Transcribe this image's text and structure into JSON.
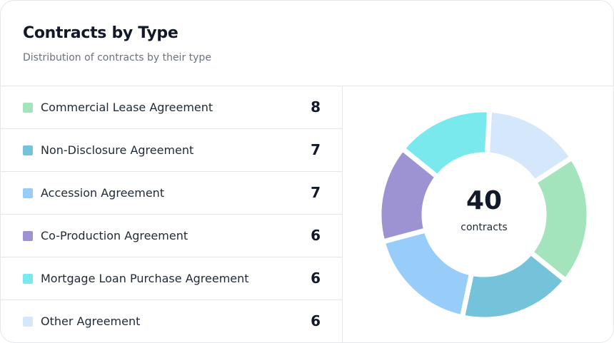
{
  "header": {
    "title": "Contracts by Type",
    "subtitle": "Distribution of contracts by their type"
  },
  "items": [
    {
      "label": "Commercial Lease Agreement",
      "value": 8,
      "color": "#a3e4bc"
    },
    {
      "label": "Non-Disclosure Agreement",
      "value": 7,
      "color": "#74c3db"
    },
    {
      "label": "Accession Agreement",
      "value": 7,
      "color": "#98cdfa"
    },
    {
      "label": "Co-Production Agreement",
      "value": 6,
      "color": "#9d93d3"
    },
    {
      "label": "Mortgage Loan Purchase Agreement",
      "value": 6,
      "color": "#7ae9ee"
    },
    {
      "label": "Other Agreement",
      "value": 6,
      "color": "#d5e8fb"
    }
  ],
  "total": {
    "value": 40,
    "label": "contracts"
  }
}
